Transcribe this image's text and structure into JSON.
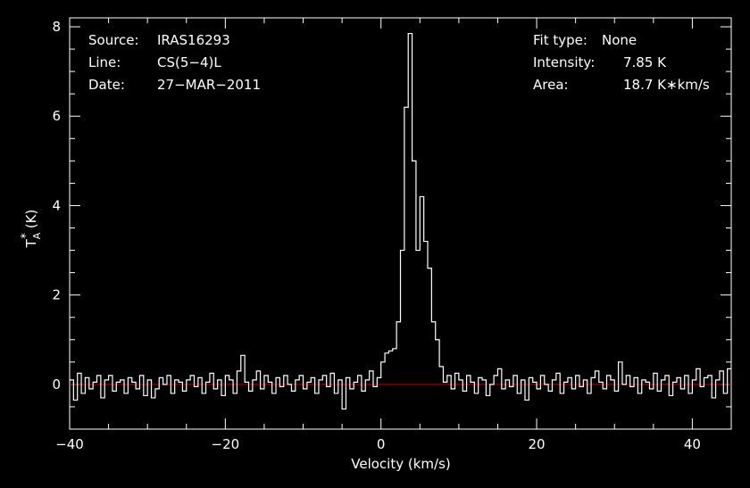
{
  "chart_data": {
    "type": "line",
    "title": "",
    "xlabel": "Velocity (km/s)",
    "ylabel": "T",
    "ylabel_sub": "A",
    "ylabel_sup": "*",
    "ylabel_unit": "(K)",
    "xlim": [
      -40,
      45
    ],
    "ylim": [
      -1,
      8.2
    ],
    "xticks": [
      -40,
      -20,
      0,
      20,
      40
    ],
    "xtick_labels": [
      "−40",
      "−20",
      "0",
      "20",
      "40"
    ],
    "yticks": [
      0,
      2,
      4,
      6,
      8
    ],
    "ytick_labels": [
      "0",
      "2",
      "4",
      "6",
      "8"
    ],
    "baseline": 0,
    "baseline_color": "#b00000",
    "line_color": "#ffffff",
    "grid": false,
    "info_left": [
      {
        "label": "Source:",
        "value": "IRAS16293"
      },
      {
        "label": "Line:",
        "value": "CS(5−4)L"
      },
      {
        "label": "Date:",
        "value": "27−MAR−2011"
      }
    ],
    "info_right": [
      {
        "label": "Fit type:",
        "value": "None"
      },
      {
        "label": "Intensity:",
        "value": "7.85 K"
      },
      {
        "label": "Area:",
        "value": "18.7 K∗km/s"
      }
    ],
    "series": [
      {
        "x": [
          -40,
          -39.5,
          -39,
          -38.5,
          -38,
          -37.5,
          -37,
          -36.5,
          -36,
          -35.5,
          -35,
          -34.5,
          -34,
          -33.5,
          -33,
          -32.5,
          -32,
          -31.5,
          -31,
          -30.5,
          -30,
          -29.5,
          -29,
          -28.5,
          -28,
          -27.5,
          -27,
          -26.5,
          -26,
          -25.5,
          -25,
          -24.5,
          -24,
          -23.5,
          -23,
          -22.5,
          -22,
          -21.5,
          -21,
          -20.5,
          -20,
          -19.5,
          -19,
          -18.5,
          -18,
          -17.5,
          -17,
          -16.5,
          -16,
          -15.5,
          -15,
          -14.5,
          -14,
          -13.5,
          -13,
          -12.5,
          -12,
          -11.5,
          -11,
          -10.5,
          -10,
          -9.5,
          -9,
          -8.5,
          -8,
          -7.5,
          -7,
          -6.5,
          -6,
          -5.5,
          -5,
          -4.5,
          -4,
          -3.5,
          -3,
          -2.5,
          -2,
          -1.5,
          -1,
          -0.5,
          0,
          0.5,
          1,
          1.5,
          2,
          2.5,
          3,
          3.5,
          4,
          4.5,
          5,
          5.5,
          6,
          6.5,
          7,
          7.5,
          8,
          8.5,
          9,
          9.5,
          10,
          10.5,
          11,
          11.5,
          12,
          12.5,
          13,
          13.5,
          14,
          14.5,
          15,
          15.5,
          16,
          16.5,
          17,
          17.5,
          18,
          18.5,
          19,
          19.5,
          20,
          20.5,
          21,
          21.5,
          22,
          22.5,
          23,
          23.5,
          24,
          24.5,
          25,
          25.5,
          26,
          26.5,
          27,
          27.5,
          28,
          28.5,
          29,
          29.5,
          30,
          30.5,
          31,
          31.5,
          32,
          32.5,
          33,
          33.5,
          34,
          34.5,
          35,
          35.5,
          36,
          36.5,
          37,
          37.5,
          38,
          38.5,
          39,
          39.5,
          40,
          40.5,
          41,
          41.5,
          42,
          42.5,
          43,
          43.5,
          44,
          44.5
        ],
        "y": [
          0.1,
          -0.35,
          0.25,
          -0.2,
          0.15,
          -0.1,
          0.05,
          0.2,
          -0.3,
          0.1,
          0.2,
          -0.15,
          0.05,
          0.1,
          -0.2,
          0.15,
          0.05,
          -0.1,
          0.2,
          -0.25,
          0.1,
          -0.3,
          -0.1,
          0.15,
          0.0,
          0.2,
          -0.2,
          0.1,
          0.05,
          -0.15,
          0.1,
          0.2,
          -0.05,
          0.15,
          -0.2,
          0.05,
          0.25,
          -0.1,
          0.1,
          -0.25,
          0.2,
          0.1,
          -0.2,
          0.3,
          0.65,
          0.05,
          -0.15,
          0.1,
          0.3,
          -0.1,
          0.2,
          0.05,
          -0.2,
          0.15,
          -0.05,
          0.2,
          0.0,
          -0.15,
          0.1,
          0.2,
          -0.1,
          0.05,
          0.15,
          -0.2,
          0.1,
          0.2,
          -0.05,
          0.25,
          -0.2,
          0.1,
          -0.55,
          0.15,
          -0.1,
          0.05,
          0.2,
          -0.15,
          0.1,
          0.3,
          -0.05,
          0.15,
          0.5,
          0.7,
          0.75,
          0.8,
          1.4,
          3.0,
          6.2,
          7.85,
          5.0,
          3.0,
          4.2,
          3.2,
          2.6,
          1.4,
          1.0,
          0.4,
          0.05,
          0.2,
          -0.1,
          0.25,
          0.1,
          -0.15,
          0.2,
          0.05,
          -0.2,
          0.15,
          0.1,
          -0.25,
          0.0,
          0.2,
          0.35,
          -0.1,
          0.1,
          -0.05,
          0.2,
          -0.2,
          0.1,
          -0.35,
          0.15,
          0.05,
          -0.1,
          0.2,
          0.0,
          -0.15,
          0.1,
          0.25,
          -0.2,
          0.05,
          0.15,
          -0.1,
          0.2,
          -0.05,
          0.1,
          -0.2,
          0.15,
          0.3,
          0.05,
          -0.1,
          0.2,
          0.1,
          -0.15,
          0.5,
          0.0,
          0.2,
          -0.05,
          0.15,
          -0.2,
          0.1,
          0.05,
          -0.1,
          0.25,
          -0.15,
          0.1,
          0.2,
          -0.25,
          0.05,
          0.15,
          -0.1,
          0.2,
          -0.2,
          0.1,
          0.35,
          -0.05,
          0.15,
          0.2,
          -0.3,
          0.1,
          0.3,
          -0.2,
          0.35
        ]
      }
    ]
  }
}
